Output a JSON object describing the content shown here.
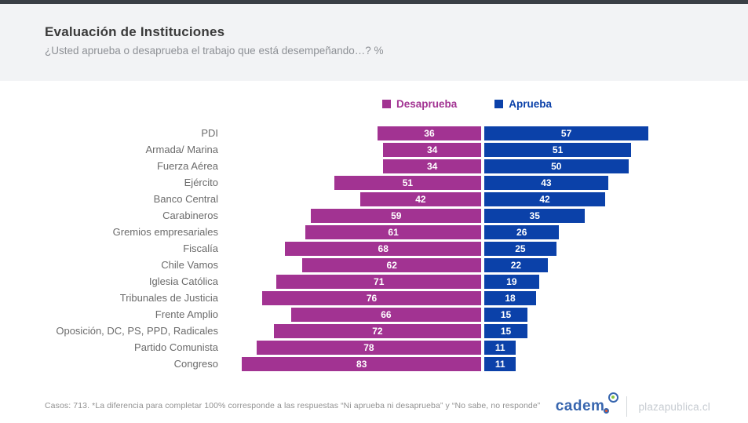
{
  "page": {
    "title": "Evaluación de Instituciones",
    "subtitle": "¿Usted aprueba o desaprueba el trabajo que está desempeñando…? %",
    "footnote": "Casos: 713. *La diferencia para completar 100% corresponde a las respuestas “Ni aprueba ni desaprueba” y “No sabe, no responde”",
    "brand": {
      "logo_text": "cadem",
      "partner_text": "plazapublica.cl"
    }
  },
  "colors": {
    "disapprove": "#a23392",
    "approve": "#0b41a9",
    "top_bar": "#3a3f45",
    "header_background": "#f2f3f5",
    "title_text": "#3a3a3a",
    "subtitle_text": "#8e9196",
    "category_label_text": "#6b6b6b",
    "logo_blue": "#3765ae"
  },
  "chart_data": {
    "type": "bar",
    "variant": "diverging-horizontal",
    "title": "Evaluación de Instituciones",
    "subtitle": "¿Usted aprueba o desaprueba el trabajo que está desempeñando…? %",
    "unit": "%",
    "xlim": [
      0,
      100
    ],
    "legend_position": "top-center",
    "categories": [
      "PDI",
      "Armada/ Marina",
      "Fuerza Aérea",
      "Ejército",
      "Banco Central",
      "Carabineros",
      "Gremios empresariales",
      "Fiscalía",
      "Chile Vamos",
      "Iglesia Católica",
      "Tribunales de Justicia",
      "Frente Amplio",
      "Oposición, DC, PS, PPD, Radicales",
      "Partido Comunista",
      "Congreso"
    ],
    "series": [
      {
        "name": "Desaprueba",
        "color": "#a23392",
        "direction": "left",
        "values": [
          36,
          34,
          34,
          51,
          42,
          59,
          61,
          68,
          62,
          71,
          76,
          66,
          72,
          78,
          83
        ]
      },
      {
        "name": "Aprueba",
        "color": "#0b41a9",
        "direction": "right",
        "values": [
          57,
          51,
          50,
          43,
          42,
          35,
          26,
          25,
          22,
          19,
          18,
          15,
          15,
          11,
          11
        ]
      }
    ]
  }
}
